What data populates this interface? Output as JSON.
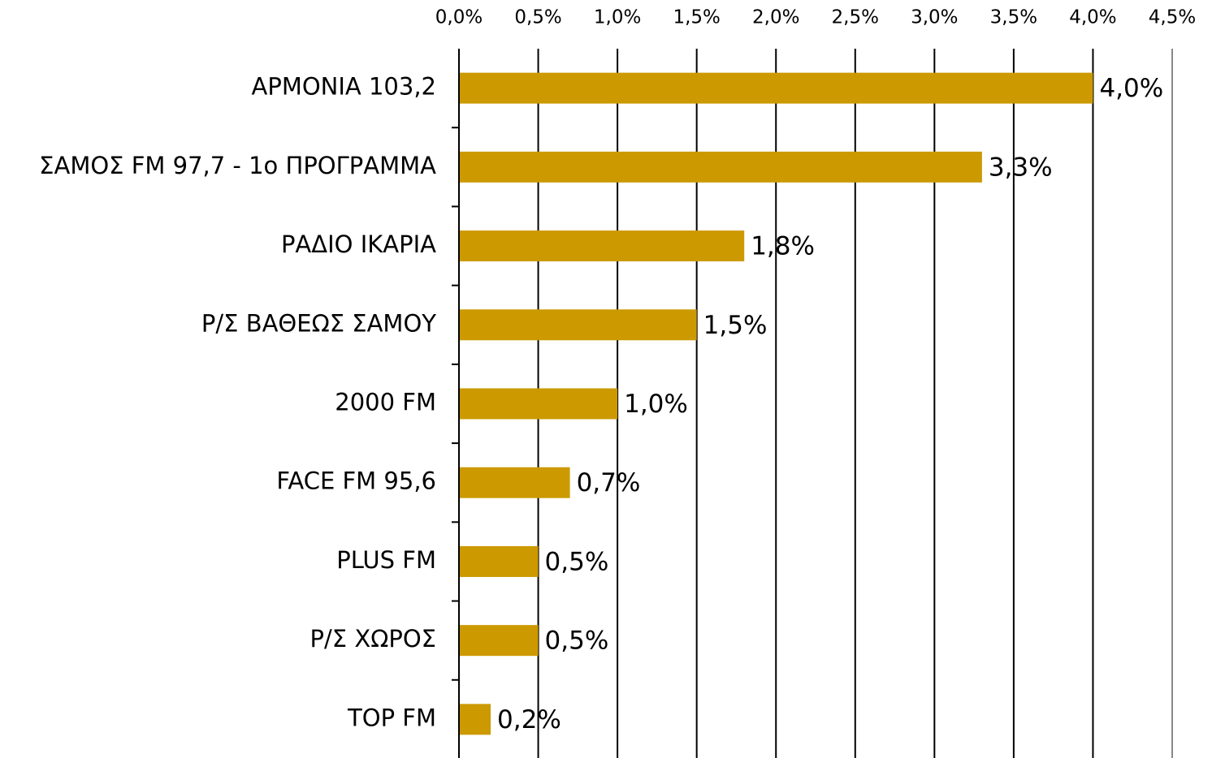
{
  "chart_data": {
    "type": "bar",
    "orientation": "horizontal",
    "categories": [
      "ΑΡΜΟΝΙΑ 103,2",
      "ΣΑΜΟΣ FM 97,7 - 1ο ΠΡΟΓΡΑΜΜΑ",
      "ΡΑΔΙΟ ΙΚΑΡΙΑ",
      "Ρ/Σ ΒΑΘΕΩΣ ΣΑΜΟΥ",
      "2000 FM",
      "FACE FM 95,6",
      "PLUS FM",
      "Ρ/Σ ΧΩΡΟΣ",
      "TOP FM"
    ],
    "values": [
      4.0,
      3.3,
      1.8,
      1.5,
      1.0,
      0.7,
      0.5,
      0.5,
      0.2
    ],
    "value_labels": [
      "4,0%",
      "3,3%",
      "1,8%",
      "1,5%",
      "1,0%",
      "0,7%",
      "0,5%",
      "0,5%",
      "0,2%"
    ],
    "color": "#cc9900",
    "xlim": [
      0,
      4.5
    ],
    "xticks": [
      {
        "value": 0,
        "label": "0,0%"
      },
      {
        "value": 0.5,
        "label": "0,5%"
      },
      {
        "value": 1.0,
        "label": "1,0%"
      },
      {
        "value": 1.5,
        "label": "1,5%"
      },
      {
        "value": 2.0,
        "label": "2,0%"
      },
      {
        "value": 2.5,
        "label": "2,5%"
      },
      {
        "value": 3.0,
        "label": "3,0%"
      },
      {
        "value": 3.5,
        "label": "3,5%"
      },
      {
        "value": 4.0,
        "label": "4,0%"
      },
      {
        "value": 4.5,
        "label": "4,5%"
      }
    ],
    "grid": true
  }
}
